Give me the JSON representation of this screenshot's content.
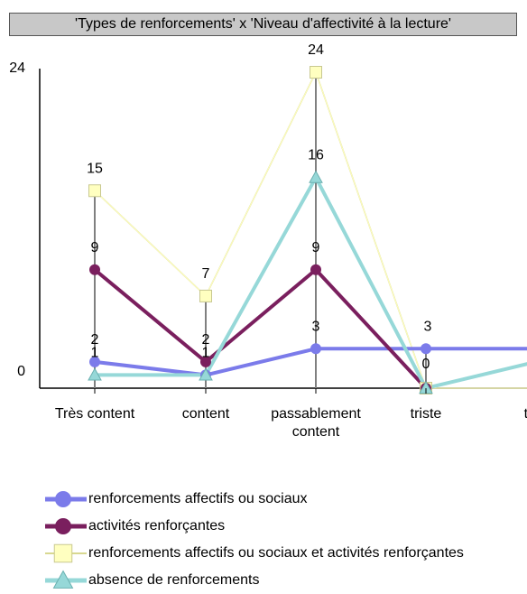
{
  "chart_data": {
    "type": "line",
    "title": "'Types de renforcements' x 'Niveau d'affectivité à la lecture'",
    "categories": [
      "Très content",
      "content",
      "passablement content",
      "triste",
      "très triste"
    ],
    "category_labels": [
      [
        "Très content"
      ],
      [
        "content"
      ],
      [
        "passablement",
        "content"
      ],
      [
        "triste"
      ],
      [
        "très"
      ]
    ],
    "y_ticks": [
      0,
      24
    ],
    "ylim": [
      0,
      24
    ],
    "xlabel": "",
    "ylabel": "",
    "grid": false,
    "legend_position": "bottom",
    "series": [
      {
        "name": "renforcements affectifs ou sociaux",
        "values": [
          2,
          1,
          3,
          3,
          3
        ],
        "color": "#7b7bea",
        "marker": "circle",
        "label_indices": [
          0,
          2,
          3
        ]
      },
      {
        "name": "activités renforçantes",
        "values": [
          9,
          2,
          9,
          0,
          null
        ],
        "color": "#7a1f5e",
        "marker": "circle",
        "label_indices": [
          0,
          1,
          2,
          3
        ]
      },
      {
        "name": "renforcements affectifs ou sociaux et activités  renforçantes",
        "values": [
          15,
          7,
          24,
          0,
          0
        ],
        "color": "#ffffc0",
        "marker": "square",
        "label_indices": [
          0,
          1,
          2
        ]
      },
      {
        "name": "absence de renforcements",
        "values": [
          1,
          1,
          16,
          0,
          2
        ],
        "color": "#96d8d8",
        "marker": "triangle",
        "label_indices": [
          0,
          1,
          2
        ]
      }
    ]
  }
}
